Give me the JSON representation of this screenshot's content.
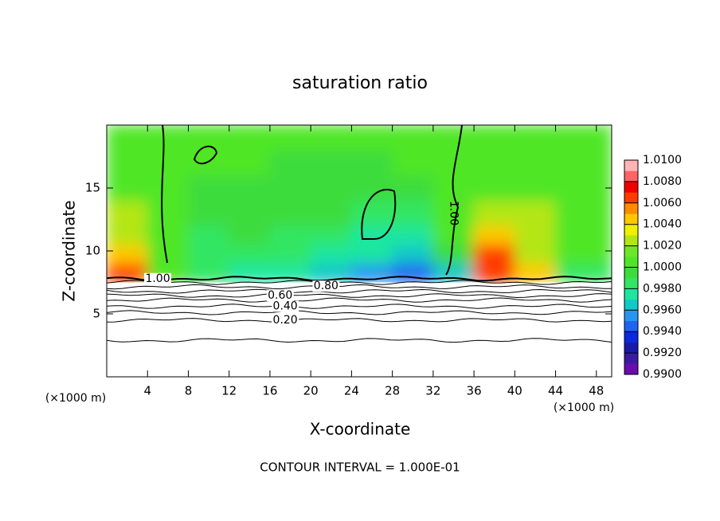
{
  "chart_data": {
    "type": "contour",
    "title": "saturation ratio",
    "x_label": "X-coordinate",
    "y_label": "Z-coordinate",
    "x_unit_label": "(×1000 m)",
    "y_unit_label": "(×1000 m)",
    "note": "CONTOUR INTERVAL = 1.000E-01",
    "xlim": [
      0,
      49.5
    ],
    "xticks": [
      4,
      8,
      12,
      16,
      20,
      24,
      28,
      32,
      36,
      40,
      44,
      48
    ],
    "ylim": [
      0,
      20
    ],
    "yticks": [
      5,
      10,
      15
    ],
    "field": {
      "x": [
        0,
        4,
        8,
        12,
        16,
        20,
        24,
        28,
        32,
        36,
        40,
        44,
        49.5
      ],
      "z": [
        7.5,
        9,
        10.5,
        12,
        14,
        16,
        18,
        20
      ],
      "values": [
        [
          1.006,
          1.001,
          0.998,
          0.997,
          0.997,
          0.996,
          0.995,
          0.994,
          0.996,
          1.007,
          1.004,
          0.998
        ],
        [
          1.005,
          1.001,
          0.998,
          0.998,
          0.998,
          0.997,
          0.997,
          0.996,
          0.999,
          1.006,
          1.003,
          1.001
        ],
        [
          1.002,
          1.001,
          0.998,
          0.999,
          0.998,
          0.998,
          0.997,
          0.997,
          1.0,
          1.004,
          1.003,
          1.001
        ],
        [
          1.002,
          1.001,
          0.999,
          0.999,
          0.999,
          0.999,
          0.998,
          0.998,
          1.0,
          1.002,
          1.002,
          1.001
        ],
        [
          1.001,
          1.001,
          0.999,
          0.999,
          0.999,
          0.999,
          0.999,
          0.999,
          1.001,
          1.001,
          1.001,
          1.001
        ],
        [
          1.001,
          1.001,
          1.0,
          1.0,
          0.999,
          0.999,
          0.999,
          1.0,
          1.001,
          1.001,
          1.001,
          1.001
        ],
        [
          1.001,
          1.001,
          1.001,
          1.001,
          1.001,
          1.001,
          1.001,
          1.001,
          1.001,
          1.001,
          1.001,
          1.001
        ]
      ]
    },
    "clim": [
      0.99,
      1.01
    ],
    "colors": [
      "#6a0dad",
      "#3a1aa0",
      "#1a1aa8",
      "#0a28e0",
      "#1e64f0",
      "#2896f0",
      "#14c8c8",
      "#1ee6a0",
      "#32e664",
      "#3cdc3c",
      "#50e628",
      "#6ee628",
      "#b4e614",
      "#f0f000",
      "#ffc800",
      "#ff8c00",
      "#ff3c00",
      "#f00000",
      "#ff6464",
      "#ffb4b4"
    ],
    "colorbar_ticks": [
      {
        "value": 0.99,
        "label": "0.9900"
      },
      {
        "value": 0.992,
        "label": "0.9920"
      },
      {
        "value": 0.994,
        "label": "0.9940"
      },
      {
        "value": 0.996,
        "label": "0.9960"
      },
      {
        "value": 0.998,
        "label": "0.9980"
      },
      {
        "value": 1.0,
        "label": "1.0000"
      },
      {
        "value": 1.002,
        "label": "1.0020"
      },
      {
        "value": 1.004,
        "label": "1.0040"
      },
      {
        "value": 1.006,
        "label": "1.0060"
      },
      {
        "value": 1.008,
        "label": "1.0080"
      },
      {
        "value": 1.01,
        "label": "1.0100"
      }
    ],
    "contours": {
      "levels": [
        0.1,
        0.2,
        0.3,
        0.4,
        0.5,
        0.6,
        0.7,
        0.8,
        0.9,
        1.0
      ],
      "z": [
        2.9,
        4.5,
        5.1,
        5.6,
        6.1,
        6.45,
        6.8,
        7.15,
        7.5,
        7.8
      ]
    },
    "contour_labels": [
      {
        "value": 1.0,
        "label": "1.00"
      },
      {
        "value": 1.0,
        "label": "1.00"
      },
      {
        "value": 0.8,
        "label": "0.80"
      },
      {
        "value": 0.6,
        "label": "0.60"
      },
      {
        "value": 0.4,
        "label": "0.40"
      },
      {
        "value": 0.2,
        "label": "0.20"
      }
    ]
  }
}
